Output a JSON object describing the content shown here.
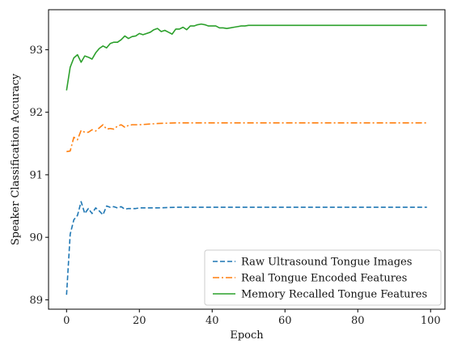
{
  "chart_data": {
    "type": "line",
    "title": "",
    "xlabel": "Epoch",
    "ylabel": "Speaker Classification Accuracy",
    "xlim": [
      -4.95,
      103.95
    ],
    "ylim": [
      88.85,
      93.64
    ],
    "x_ticks": [
      0,
      20,
      40,
      60,
      80,
      100
    ],
    "y_ticks": [
      89,
      90,
      91,
      92,
      93
    ],
    "grid": false,
    "legend_position": "lower-right",
    "series": [
      {
        "name": "Raw Ultrasound Tongue Images",
        "color": "#1f77b4",
        "dash": "dashed",
        "x": [
          0,
          1,
          2,
          3,
          4,
          5,
          6,
          7,
          8,
          9,
          10,
          11,
          12,
          13,
          14,
          15,
          16,
          17,
          18,
          19,
          20,
          25,
          30,
          35,
          40,
          45,
          50,
          55,
          60,
          65,
          70,
          75,
          80,
          85,
          90,
          95,
          99
        ],
        "values": [
          89.08,
          90.05,
          90.28,
          90.35,
          90.57,
          90.38,
          90.46,
          90.38,
          90.47,
          90.42,
          90.36,
          90.5,
          90.48,
          90.49,
          90.47,
          90.49,
          90.45,
          90.46,
          90.46,
          90.46,
          90.47,
          90.47,
          90.48,
          90.48,
          90.48,
          90.48,
          90.48,
          90.48,
          90.48,
          90.48,
          90.48,
          90.48,
          90.48,
          90.48,
          90.48,
          90.48,
          90.48
        ]
      },
      {
        "name": "Real Tongue Encoded Features",
        "color": "#ff7f0e",
        "dash": "dashdot",
        "x": [
          0,
          1,
          2,
          3,
          4,
          5,
          6,
          7,
          8,
          9,
          10,
          11,
          12,
          13,
          14,
          15,
          16,
          17,
          18,
          19,
          20,
          25,
          30,
          35,
          40,
          45,
          50,
          55,
          60,
          65,
          70,
          75,
          80,
          85,
          90,
          95,
          99
        ],
        "values": [
          91.37,
          91.38,
          91.6,
          91.56,
          91.71,
          91.68,
          91.68,
          91.72,
          91.7,
          91.75,
          91.8,
          91.73,
          91.74,
          91.73,
          91.78,
          91.8,
          91.76,
          91.79,
          91.8,
          91.8,
          91.8,
          91.82,
          91.83,
          91.83,
          91.83,
          91.83,
          91.83,
          91.83,
          91.83,
          91.83,
          91.83,
          91.83,
          91.83,
          91.83,
          91.83,
          91.83,
          91.83
        ]
      },
      {
        "name": "Memory Recalled Tongue Features",
        "color": "#2ca02c",
        "dash": "solid",
        "x": [
          0,
          1,
          2,
          3,
          4,
          5,
          6,
          7,
          8,
          9,
          10,
          11,
          12,
          13,
          14,
          15,
          16,
          17,
          18,
          19,
          20,
          21,
          22,
          23,
          24,
          25,
          26,
          27,
          28,
          29,
          30,
          31,
          32,
          33,
          34,
          35,
          36,
          37,
          38,
          39,
          40,
          41,
          42,
          43,
          44,
          45,
          46,
          47,
          48,
          49,
          50,
          55,
          60,
          65,
          70,
          75,
          80,
          85,
          90,
          95,
          99
        ],
        "values": [
          92.35,
          92.72,
          92.87,
          92.92,
          92.8,
          92.9,
          92.88,
          92.85,
          92.95,
          93.02,
          93.06,
          93.03,
          93.1,
          93.12,
          93.12,
          93.16,
          93.22,
          93.18,
          93.21,
          93.22,
          93.26,
          93.24,
          93.26,
          93.28,
          93.32,
          93.34,
          93.29,
          93.31,
          93.28,
          93.25,
          93.33,
          93.33,
          93.36,
          93.32,
          93.38,
          93.38,
          93.4,
          93.41,
          93.4,
          93.38,
          93.38,
          93.38,
          93.35,
          93.35,
          93.34,
          93.35,
          93.36,
          93.37,
          93.38,
          93.38,
          93.39,
          93.39,
          93.39,
          93.39,
          93.39,
          93.39,
          93.39,
          93.39,
          93.39,
          93.39,
          93.39
        ]
      }
    ]
  }
}
